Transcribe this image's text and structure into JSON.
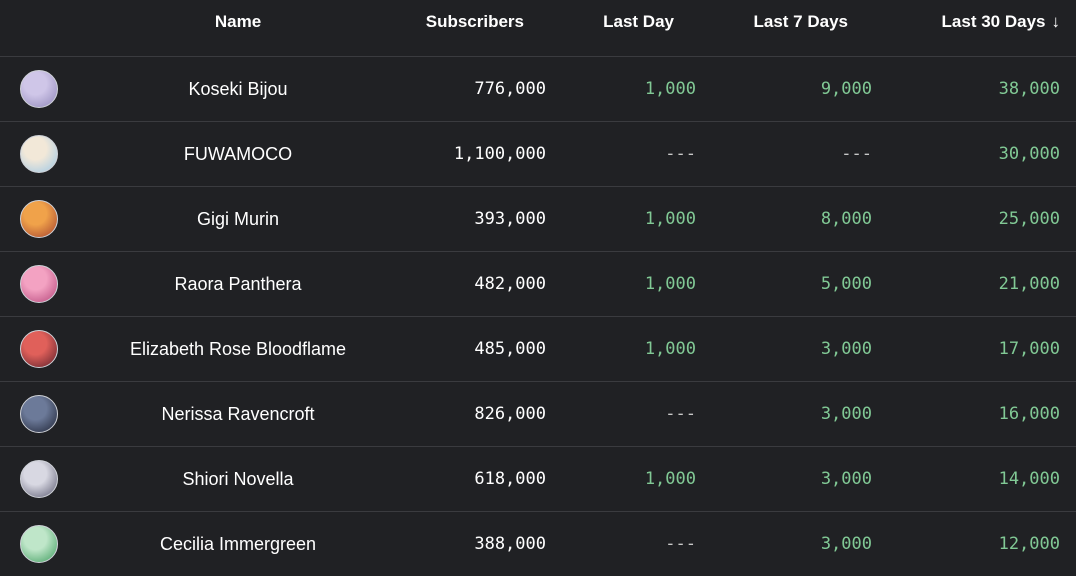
{
  "header": {
    "name": "Name",
    "subscribers": "Subscribers",
    "last_day": "Last Day",
    "last_7_days": "Last 7 Days",
    "last_30_days": "Last 30 Days",
    "sort_icon": "arrow-down-icon",
    "sort_glyph": "↓"
  },
  "colors": {
    "background": "#202124",
    "divider": "#3a3b3f",
    "positive": "#81c995",
    "text": "#ffffff"
  },
  "rows": [
    {
      "name": "Koseki Bijou",
      "subscribers": "776,000",
      "last_day": "1,000",
      "last_7_days": "9,000",
      "last_30_days": "38,000",
      "avatar_colors": [
        "#cfc6e8",
        "#8f86b8"
      ]
    },
    {
      "name": "FUWAMOCO",
      "subscribers": "1,100,000",
      "last_day": "---",
      "last_7_days": "---",
      "last_30_days": "30,000",
      "avatar_colors": [
        "#f2e8d8",
        "#9cc7e6"
      ]
    },
    {
      "name": "Gigi Murin",
      "subscribers": "393,000",
      "last_day": "1,000",
      "last_7_days": "8,000",
      "last_30_days": "25,000",
      "avatar_colors": [
        "#f0a24a",
        "#a3402e"
      ]
    },
    {
      "name": "Raora Panthera",
      "subscribers": "482,000",
      "last_day": "1,000",
      "last_7_days": "5,000",
      "last_30_days": "21,000",
      "avatar_colors": [
        "#f3a2c2",
        "#b5457a"
      ]
    },
    {
      "name": "Elizabeth Rose Bloodflame",
      "subscribers": "485,000",
      "last_day": "1,000",
      "last_7_days": "3,000",
      "last_30_days": "17,000",
      "avatar_colors": [
        "#e0605a",
        "#5a1f2a"
      ]
    },
    {
      "name": "Nerissa Ravencroft",
      "subscribers": "826,000",
      "last_day": "---",
      "last_7_days": "3,000",
      "last_30_days": "16,000",
      "avatar_colors": [
        "#6c7a99",
        "#1d2233"
      ]
    },
    {
      "name": "Shiori Novella",
      "subscribers": "618,000",
      "last_day": "1,000",
      "last_7_days": "3,000",
      "last_30_days": "14,000",
      "avatar_colors": [
        "#d8d8e2",
        "#5a5a70"
      ]
    },
    {
      "name": "Cecilia Immergreen",
      "subscribers": "388,000",
      "last_day": "---",
      "last_7_days": "3,000",
      "last_30_days": "12,000",
      "avatar_colors": [
        "#bfe6c9",
        "#3c9b5c"
      ]
    }
  ]
}
